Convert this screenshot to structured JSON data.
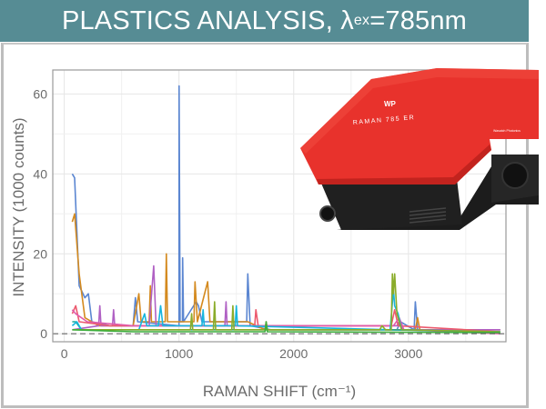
{
  "header": {
    "title_prefix": "PLASTICS ANALYSIS, λ",
    "title_sub": "ex",
    "title_suffix": "=785nm",
    "background": "#568c94"
  },
  "device_image": {
    "brand_logo": "WP",
    "model_label": "RAMAN 785 ER",
    "maker_label": "Wasatch Photonics",
    "body_color": "#e8322c"
  },
  "chart_data": {
    "type": "line",
    "title": "PLASTICS ANALYSIS, λex=785nm",
    "xlabel": "RAMAN SHIFT (cm⁻¹)",
    "ylabel": "INTENSITY (1000 counts)",
    "xlim": [
      -100,
      3850
    ],
    "ylim": [
      -2,
      66
    ],
    "x_ticks": [
      0,
      1000,
      2000,
      3000
    ],
    "y_ticks": [
      0,
      20,
      40,
      60
    ],
    "grid": true,
    "baseline_dashed_at": 0,
    "legend": "none",
    "series": [
      {
        "name": "blue",
        "color": "#5b86d1",
        "points": [
          [
            70,
            40
          ],
          [
            90,
            39
          ],
          [
            130,
            12
          ],
          [
            180,
            9
          ],
          [
            210,
            10
          ],
          [
            240,
            3
          ],
          [
            400,
            2
          ],
          [
            600,
            2
          ],
          [
            620,
            9
          ],
          [
            640,
            3
          ],
          [
            1000,
            2
          ],
          [
            1001,
            62
          ],
          [
            1010,
            3
          ],
          [
            1030,
            3
          ],
          [
            1032,
            19
          ],
          [
            1040,
            3
          ],
          [
            1150,
            8
          ],
          [
            1170,
            7
          ],
          [
            1200,
            3
          ],
          [
            1590,
            3
          ],
          [
            1600,
            15
          ],
          [
            1620,
            2
          ],
          [
            1800,
            1
          ],
          [
            2900,
            1
          ],
          [
            2930,
            3
          ],
          [
            3050,
            1
          ],
          [
            3060,
            8
          ],
          [
            3080,
            1
          ],
          [
            3800,
            1
          ]
        ]
      },
      {
        "name": "orange",
        "color": "#d48a1f",
        "points": [
          [
            70,
            28
          ],
          [
            90,
            30
          ],
          [
            130,
            15
          ],
          [
            180,
            4
          ],
          [
            300,
            2
          ],
          [
            600,
            2
          ],
          [
            650,
            10
          ],
          [
            670,
            3
          ],
          [
            740,
            3
          ],
          [
            750,
            12
          ],
          [
            760,
            3
          ],
          [
            880,
            3
          ],
          [
            890,
            20
          ],
          [
            900,
            3
          ],
          [
            1130,
            3
          ],
          [
            1140,
            13
          ],
          [
            1160,
            3
          ],
          [
            1250,
            13
          ],
          [
            1270,
            3
          ],
          [
            1600,
            3
          ],
          [
            1750,
            1
          ],
          [
            1760,
            3
          ],
          [
            1770,
            1
          ],
          [
            3060,
            1
          ],
          [
            3080,
            4
          ],
          [
            3100,
            1
          ],
          [
            3800,
            1
          ]
        ]
      },
      {
        "name": "purple",
        "color": "#b061c4",
        "points": [
          [
            70,
            1
          ],
          [
            300,
            2
          ],
          [
            310,
            7
          ],
          [
            320,
            2
          ],
          [
            420,
            2
          ],
          [
            430,
            6
          ],
          [
            440,
            2
          ],
          [
            740,
            2
          ],
          [
            780,
            17
          ],
          [
            800,
            2
          ],
          [
            1400,
            2
          ],
          [
            1410,
            8
          ],
          [
            1420,
            2
          ],
          [
            2900,
            2
          ],
          [
            2920,
            3
          ],
          [
            2950,
            1
          ],
          [
            3800,
            1
          ]
        ]
      },
      {
        "name": "red-pink",
        "color": "#ec5a6e",
        "points": [
          [
            70,
            5
          ],
          [
            100,
            7
          ],
          [
            130,
            3
          ],
          [
            400,
            2
          ],
          [
            1300,
            2
          ],
          [
            1660,
            2
          ],
          [
            1670,
            6
          ],
          [
            1690,
            2
          ],
          [
            2850,
            2
          ],
          [
            2880,
            6
          ],
          [
            2910,
            2
          ],
          [
            3800,
            0.5
          ]
        ]
      },
      {
        "name": "magenta",
        "color": "#e15bab",
        "points": [
          [
            70,
            6
          ],
          [
            100,
            5
          ],
          [
            200,
            3
          ],
          [
            600,
            2
          ],
          [
            900,
            2
          ],
          [
            1500,
            2
          ],
          [
            2870,
            2
          ],
          [
            2920,
            4
          ],
          [
            2960,
            1
          ],
          [
            3800,
            0
          ]
        ]
      },
      {
        "name": "teal",
        "color": "#1aa89a",
        "points": [
          [
            70,
            3
          ],
          [
            100,
            3
          ],
          [
            150,
            1
          ],
          [
            600,
            1
          ],
          [
            1400,
            1
          ],
          [
            2800,
            1
          ],
          [
            3800,
            0.5
          ]
        ]
      },
      {
        "name": "cyan",
        "color": "#16b6de",
        "points": [
          [
            70,
            2
          ],
          [
            110,
            3
          ],
          [
            150,
            1
          ],
          [
            650,
            1
          ],
          [
            700,
            5
          ],
          [
            720,
            2
          ],
          [
            820,
            2
          ],
          [
            840,
            7
          ],
          [
            860,
            2
          ],
          [
            1200,
            2
          ],
          [
            1210,
            6
          ],
          [
            1220,
            2
          ],
          [
            1490,
            2
          ],
          [
            1500,
            7
          ],
          [
            1510,
            2
          ],
          [
            2840,
            1
          ],
          [
            2870,
            11
          ],
          [
            2880,
            7
          ],
          [
            2910,
            5
          ],
          [
            2940,
            1
          ],
          [
            3800,
            0.5
          ]
        ]
      },
      {
        "name": "olive-green",
        "color": "#8aac2a",
        "points": [
          [
            70,
            1
          ],
          [
            600,
            1
          ],
          [
            1100,
            1
          ],
          [
            1110,
            5
          ],
          [
            1120,
            1
          ],
          [
            1300,
            1
          ],
          [
            1310,
            8
          ],
          [
            1320,
            1
          ],
          [
            1460,
            1
          ],
          [
            1470,
            7
          ],
          [
            1480,
            1
          ],
          [
            2750,
            1
          ],
          [
            2770,
            2
          ],
          [
            2800,
            1
          ],
          [
            2850,
            1
          ],
          [
            2860,
            15
          ],
          [
            2870,
            10
          ],
          [
            2880,
            15
          ],
          [
            2900,
            5
          ],
          [
            2940,
            1
          ],
          [
            3800,
            0.5
          ]
        ]
      },
      {
        "name": "green",
        "color": "#3cae3c",
        "points": [
          [
            70,
            1
          ],
          [
            600,
            0.5
          ],
          [
            1750,
            0.5
          ],
          [
            1760,
            3
          ],
          [
            1770,
            0.5
          ],
          [
            3800,
            0.3
          ]
        ]
      }
    ]
  }
}
